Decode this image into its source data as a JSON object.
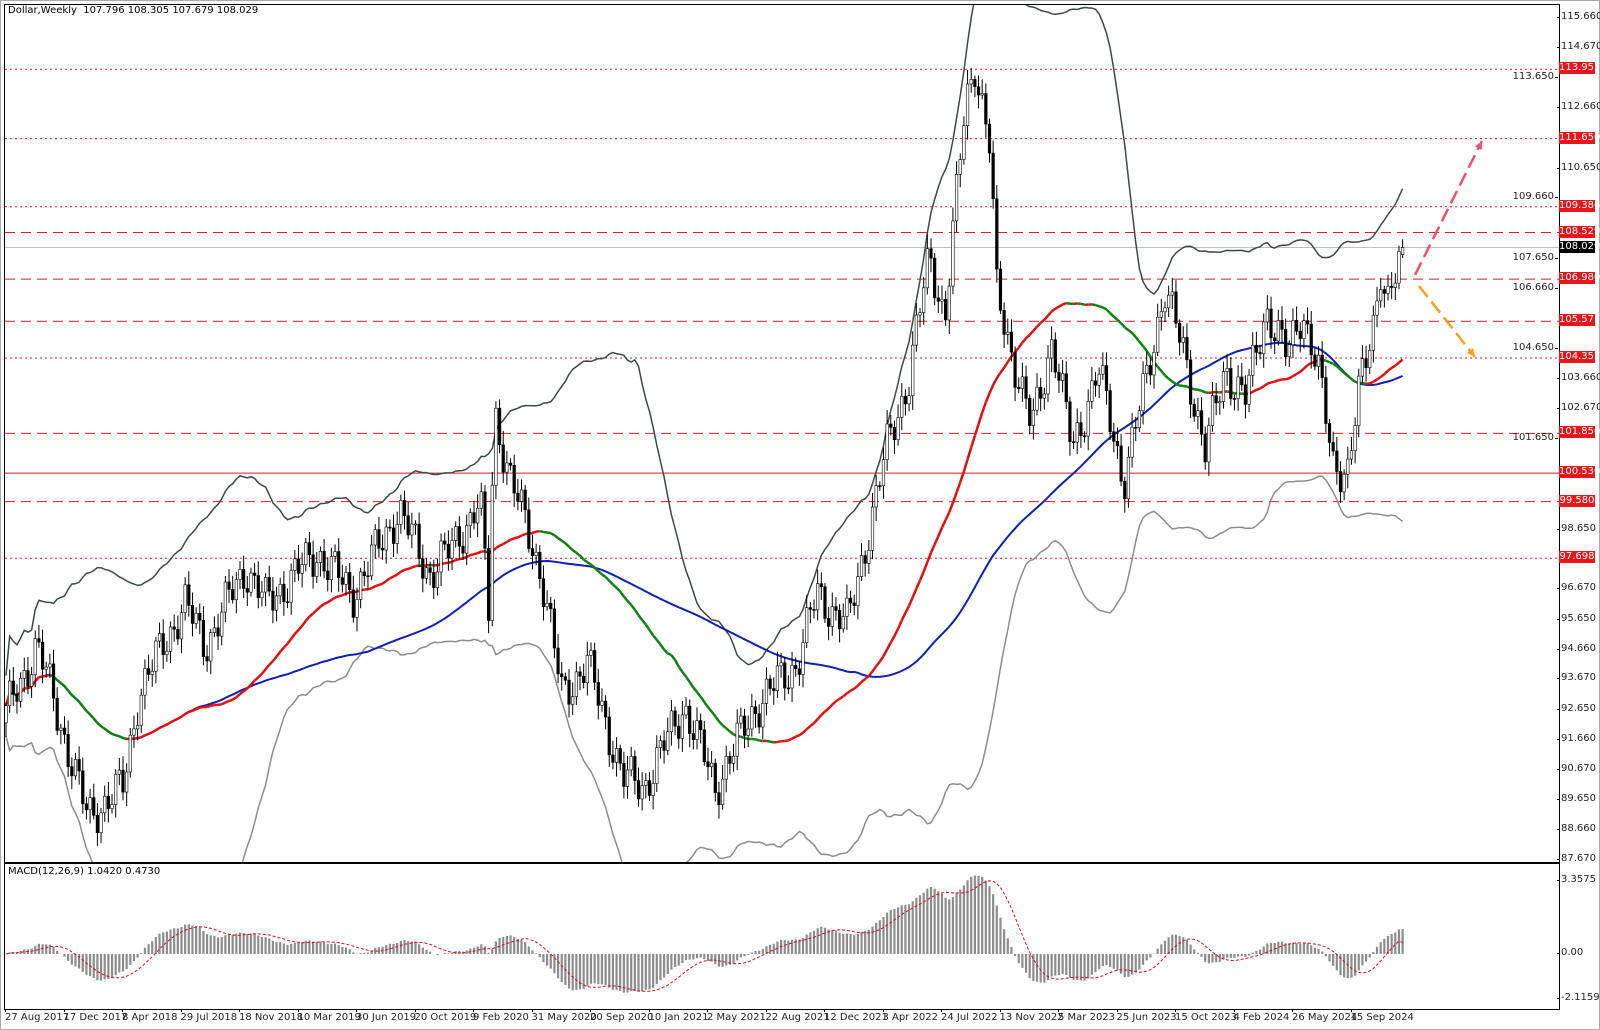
{
  "header": {
    "symbol_timeframe": "Dollar,Weekly",
    "ohlc": "107.796 108.305 107.679 108.029"
  },
  "macd_label": "MACD(12,26,9) 1.0420 0.4730",
  "colors": {
    "bull_bear_candles": "#000000",
    "level_lines": "#d81e1e",
    "band_upper": "#3a4a44",
    "band_lower": "#8c8c8c",
    "ma_long": "#1020b0",
    "ma_rising": "#e01010",
    "ma_falling": "#108010",
    "macd_histogram": "#8c8c8c",
    "macd_signal": "#d01010",
    "arrow_up": "#f0506a",
    "arrow_down": "#f5a020"
  },
  "chart_data": {
    "type": "candlestick",
    "title": "Dollar,Weekly",
    "ylim": [
      87.67,
      115.66
    ],
    "grid": false,
    "y_ticks": [
      "115.660",
      "114.670",
      "113.650",
      "112.660",
      "110.650",
      "109.660",
      "107.650",
      "106.660",
      "104.650",
      "103.660",
      "102.670",
      "101.650",
      "98.650",
      "96.670",
      "95.650",
      "94.660",
      "93.670",
      "92.650",
      "91.660",
      "90.670",
      "89.650",
      "88.660",
      "87.670"
    ],
    "x_ticks": [
      "27 Aug 2017",
      "17 Dec 2017",
      "8 Apr 2018",
      "29 Jul 2018",
      "18 Nov 2018",
      "10 Mar 2019",
      "30 Jun 2019",
      "20 Oct 2019",
      "9 Feb 2020",
      "31 May 2020",
      "20 Sep 2020",
      "10 Jan 2021",
      "2 May 2021",
      "22 Aug 2021",
      "12 Dec 2021",
      "3 Apr 2022",
      "24 Jul 2022",
      "13 Nov 2022",
      "5 Mar 2023",
      "25 Jun 2023",
      "15 Oct 2023",
      "4 Feb 2024",
      "26 May 2024",
      "15 Sep 2024"
    ],
    "x_tick_start": "2017-08-27",
    "close_path": [
      [
        "2017-08-27",
        92.5
      ],
      [
        "2017-10-25",
        94.8
      ],
      [
        "2017-11-23",
        93.2
      ],
      [
        "2018-01-30",
        89.1
      ],
      [
        "2018-04-09",
        90.1
      ],
      [
        "2018-05-08",
        93.2
      ],
      [
        "2018-08-04",
        96.2
      ],
      [
        "2018-09-12",
        94.8
      ],
      [
        "2018-11-29",
        97.4
      ],
      [
        "2019-01-07",
        96.2
      ],
      [
        "2019-04-15",
        97.9
      ],
      [
        "2019-06-22",
        96.5
      ],
      [
        "2019-09-18",
        99.3
      ],
      [
        "2019-11-15",
        97.2
      ],
      [
        "2019-12-24",
        97.9
      ],
      [
        "2020-02-21",
        99.6
      ],
      [
        "2020-03-08",
        95.9
      ],
      [
        "2020-03-19",
        102.6
      ],
      [
        "2020-04-20",
        100.3
      ],
      [
        "2020-06-17",
        97.2
      ],
      [
        "2020-07-26",
        93.2
      ],
      [
        "2020-09-13",
        94.2
      ],
      [
        "2020-11-21",
        90.4
      ],
      [
        "2020-12-30",
        90.1
      ],
      [
        "2021-03-18",
        92.8
      ],
      [
        "2021-05-16",
        90.1
      ],
      [
        "2021-08-02",
        92.8
      ],
      [
        "2021-10-19",
        94.2
      ],
      [
        "2021-11-27",
        96.5
      ],
      [
        "2022-01-25",
        95.5
      ],
      [
        "2022-03-05",
        98.6
      ],
      [
        "2022-04-13",
        101.6
      ],
      [
        "2022-05-22",
        103.7
      ],
      [
        "2022-06-30",
        107.8
      ],
      [
        "2022-07-30",
        105.7
      ],
      [
        "2022-09-07",
        112.8
      ],
      [
        "2022-09-25",
        114.2
      ],
      [
        "2022-10-26",
        111.1
      ],
      [
        "2022-11-04",
        106.7
      ],
      [
        "2022-12-23",
        103.3
      ],
      [
        "2023-01-12",
        102.0
      ],
      [
        "2023-02-20",
        105.0
      ],
      [
        "2023-03-31",
        101.3
      ],
      [
        "2023-05-19",
        104.0
      ],
      [
        "2023-07-07",
        100.3
      ],
      [
        "2023-08-15",
        103.3
      ],
      [
        "2023-09-23",
        106.7
      ],
      [
        "2023-11-01",
        104.4
      ],
      [
        "2023-12-10",
        101.3
      ],
      [
        "2024-01-18",
        104.0
      ],
      [
        "2024-02-26",
        103.0
      ],
      [
        "2024-04-05",
        106.0
      ],
      [
        "2024-05-15",
        104.4
      ],
      [
        "2024-06-13",
        106.0
      ],
      [
        "2024-07-12",
        104.0
      ],
      [
        "2024-08-11",
        100.9
      ],
      [
        "2024-09-09",
        100.6
      ],
      [
        "2024-09-28",
        103.0
      ],
      [
        "2024-10-28",
        105.7
      ],
      [
        "2024-11-10",
        107.4
      ],
      [
        "2024-11-22",
        106.0
      ],
      [
        "2024-12-22",
        107.796
      ]
    ],
    "last_bar": {
      "open": 107.796,
      "high": 108.305,
      "low": 107.679,
      "close": 108.029
    },
    "current_price": "108.029",
    "levels": [
      {
        "value": "113.957",
        "style": "dotted"
      },
      {
        "value": "111.650",
        "style": "dotted"
      },
      {
        "value": "109.386",
        "style": "dotted"
      },
      {
        "value": "108.529",
        "style": "dashed"
      },
      {
        "value": "106.980",
        "style": "dashed"
      },
      {
        "value": "105.577",
        "style": "dashed"
      },
      {
        "value": "104.357",
        "style": "dotted"
      },
      {
        "value": "101.850",
        "style": "dashed"
      },
      {
        "value": "100.530",
        "style": "solid"
      },
      {
        "value": "99.580",
        "style": "dashed"
      },
      {
        "value": "97.698",
        "style": "dotted"
      }
    ],
    "macd": {
      "fast": 12,
      "slow": 26,
      "signal": 9,
      "value": 1.042,
      "signal_value": 0.473,
      "ylim": [
        -2.1159,
        3.3575
      ],
      "y_ticks": [
        "3.3575",
        "0.00",
        "-2.1159"
      ]
    }
  }
}
